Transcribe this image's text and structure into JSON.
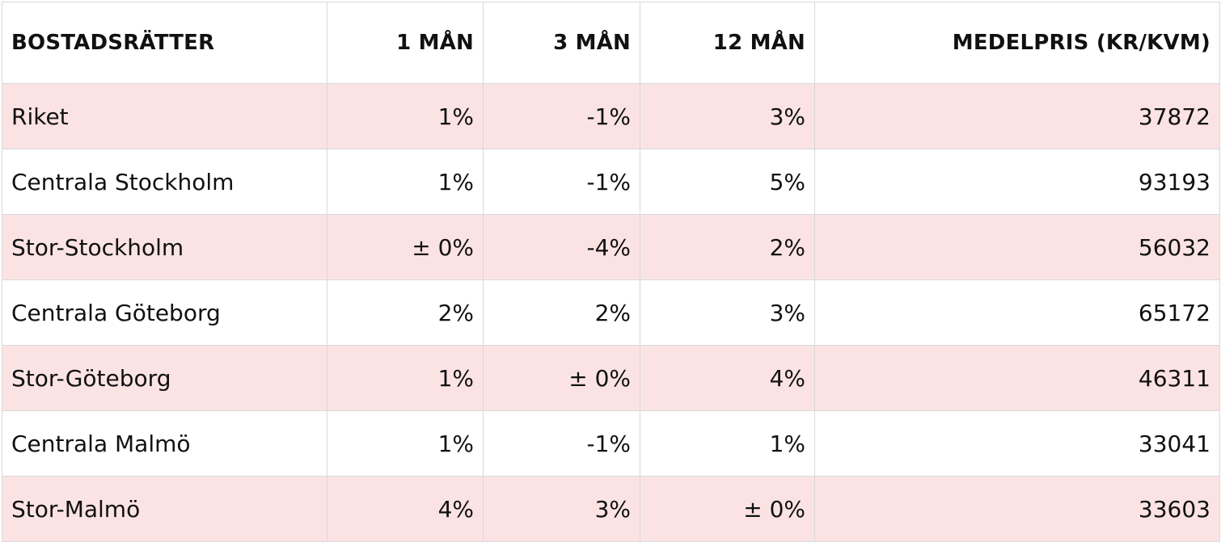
{
  "table": {
    "headers": [
      "BOSTADSRÄTTER",
      "1 MÅN",
      "3 MÅN",
      "12 MÅN",
      "MEDELPRIS (KR/KVM)"
    ],
    "rows": [
      [
        "Riket",
        "1%",
        "-1%",
        "3%",
        "37872"
      ],
      [
        "Centrala Stockholm",
        "1%",
        "-1%",
        "5%",
        "93193"
      ],
      [
        "Stor-Stockholm",
        "± 0%",
        "-4%",
        "2%",
        "56032"
      ],
      [
        "Centrala Göteborg",
        "2%",
        "2%",
        "3%",
        "65172"
      ],
      [
        "Stor-Göteborg",
        "1%",
        "± 0%",
        "4%",
        "46311"
      ],
      [
        "Centrala Malmö",
        "1%",
        "-1%",
        "1%",
        "33041"
      ],
      [
        "Stor-Malmö",
        "4%",
        "3%",
        "± 0%",
        "33603"
      ]
    ]
  },
  "colors": {
    "shade_row": "#fbe3e4",
    "border": "#d9d9d9",
    "text": "#111111"
  }
}
